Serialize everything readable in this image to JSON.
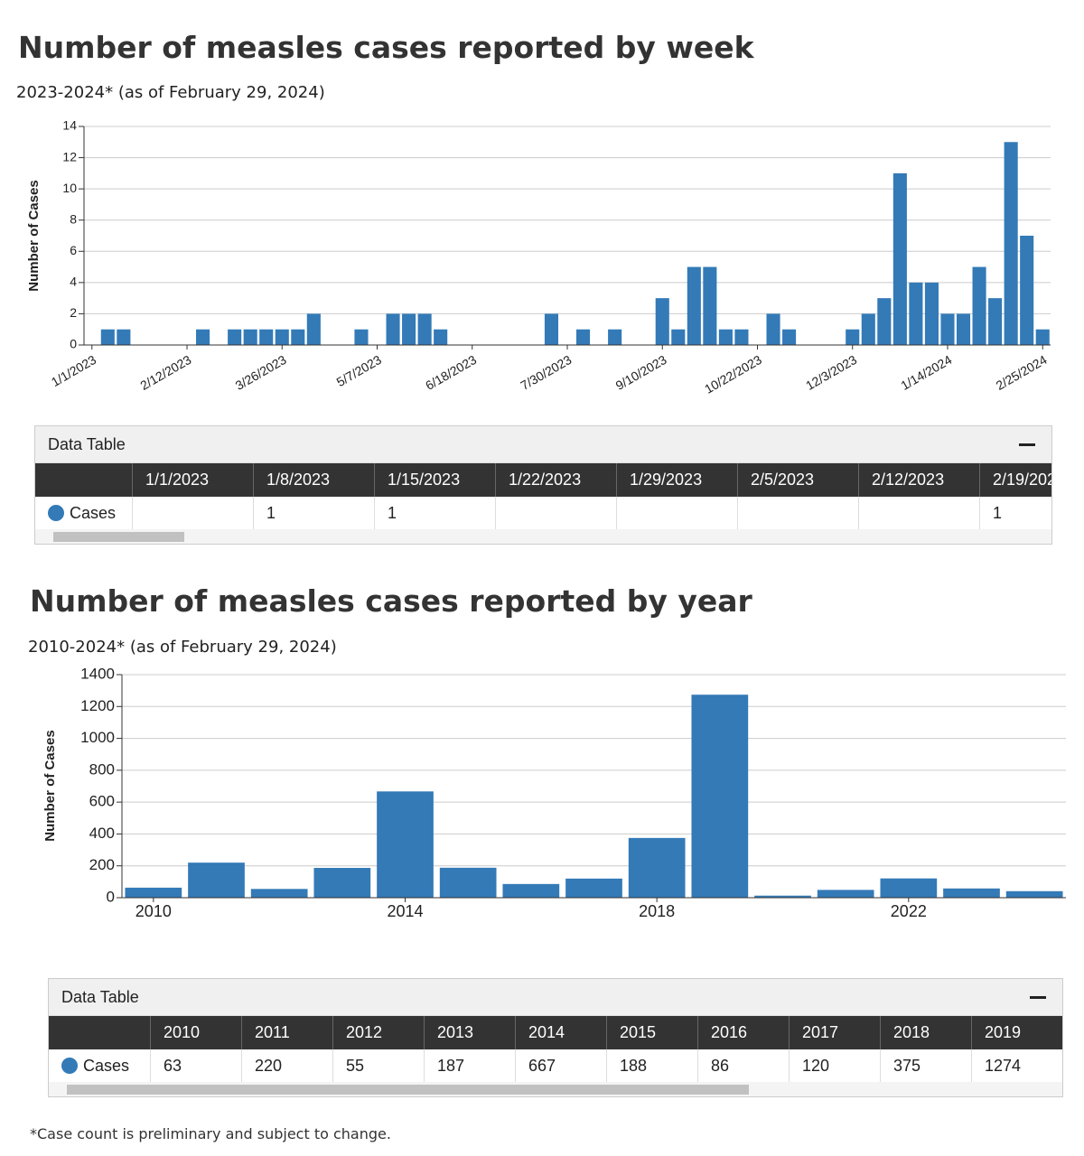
{
  "chart_data": [
    {
      "type": "bar",
      "title": "Number of measles cases reported by week",
      "subtitle": "2023-2024* (as of February 29, 2024)",
      "y_label": "Number of Cases",
      "categories": [
        "1/1/2023",
        "1/8/2023",
        "1/15/2023",
        "1/22/2023",
        "1/29/2023",
        "2/5/2023",
        "2/12/2023",
        "2/19/2023",
        "2/26/2023",
        "3/5/2023",
        "3/12/2023",
        "3/19/2023",
        "3/26/2023",
        "4/2/2023",
        "4/9/2023",
        "4/16/2023",
        "4/23/2023",
        "4/30/2023",
        "5/7/2023",
        "5/14/2023",
        "5/21/2023",
        "5/28/2023",
        "6/4/2023",
        "6/11/2023",
        "6/18/2023",
        "6/25/2023",
        "7/2/2023",
        "7/9/2023",
        "7/16/2023",
        "7/23/2023",
        "7/30/2023",
        "8/6/2023",
        "8/13/2023",
        "8/20/2023",
        "8/27/2023",
        "9/3/2023",
        "9/10/2023",
        "9/17/2023",
        "9/24/2023",
        "10/1/2023",
        "10/8/2023",
        "10/15/2023",
        "10/22/2023",
        "10/29/2023",
        "11/5/2023",
        "11/12/2023",
        "11/19/2023",
        "11/26/2023",
        "12/3/2023",
        "12/10/2023",
        "12/17/2023",
        "12/24/2023",
        "12/31/2023",
        "1/7/2024",
        "1/14/2024",
        "1/21/2024",
        "1/28/2024",
        "2/4/2024",
        "2/11/2024",
        "2/18/2024",
        "2/25/2024"
      ],
      "series": [
        {
          "name": "Cases",
          "color": "#337ab7",
          "values": [
            null,
            1,
            1,
            null,
            null,
            null,
            null,
            1,
            null,
            1,
            1,
            1,
            1,
            1,
            2,
            null,
            null,
            1,
            null,
            2,
            2,
            2,
            1,
            null,
            null,
            null,
            null,
            null,
            null,
            2,
            null,
            1,
            null,
            1,
            null,
            null,
            3,
            1,
            5,
            5,
            1,
            1,
            null,
            2,
            1,
            null,
            null,
            null,
            1,
            2,
            3,
            11,
            4,
            4,
            2,
            2,
            5,
            3,
            13,
            7,
            1
          ]
        }
      ],
      "ylim": [
        0,
        14
      ],
      "yticks": [
        0,
        2,
        4,
        6,
        8,
        10,
        12,
        14
      ],
      "grid": true,
      "table_title": "Data Table"
    },
    {
      "type": "bar",
      "title": "Number of measles cases reported by year",
      "subtitle": "2010-2024* (as of February 29, 2024)",
      "y_label": "Number of Cases",
      "x": [
        2010,
        2011,
        2012,
        2013,
        2014,
        2015,
        2016,
        2017,
        2018,
        2019,
        2020,
        2021,
        2022,
        2023,
        2024
      ],
      "xlim": [
        2009.5,
        2024.5
      ],
      "xticks": [
        2010,
        2014,
        2018,
        2022
      ],
      "series": [
        {
          "name": "Cases",
          "color": "#337ab7",
          "values": [
            63,
            220,
            55,
            187,
            667,
            188,
            86,
            120,
            375,
            1274,
            13,
            49,
            121,
            58,
            41
          ]
        }
      ],
      "ylim": [
        0,
        1400
      ],
      "yticks": [
        0,
        200,
        400,
        600,
        800,
        1000,
        1200,
        1400
      ],
      "grid": true,
      "table_title": "Data Table"
    }
  ],
  "footnote": "*Case count is preliminary and subject to change."
}
